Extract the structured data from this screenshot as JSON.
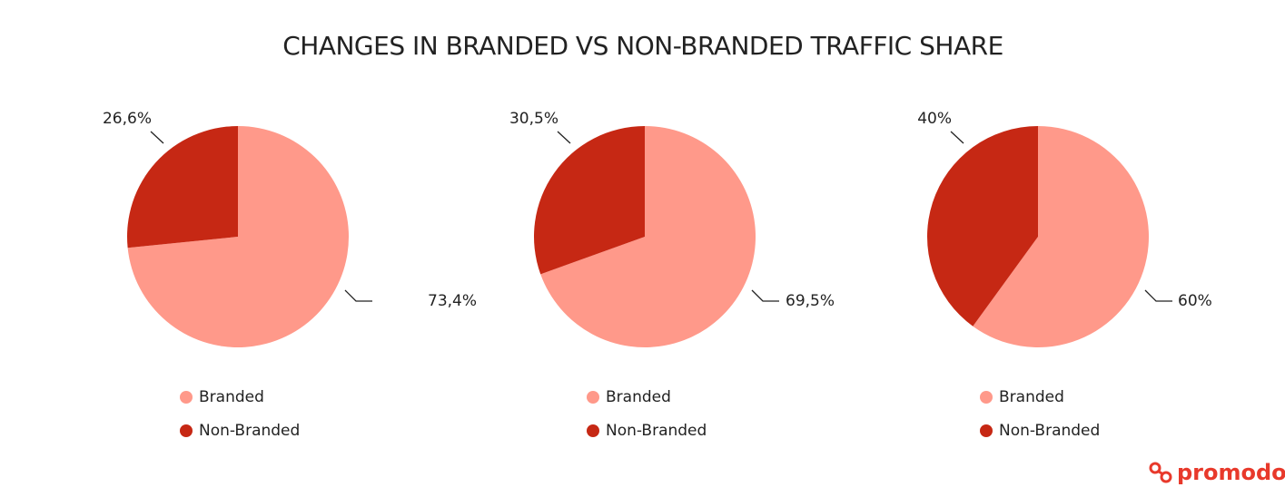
{
  "title": "CHANGES IN BRANDED VS NON-BRANDED TRAFFIC SHARE",
  "logo": "promodo",
  "chart_data": [
    {
      "type": "pie",
      "categories": [
        "Branded",
        "Non-Branded"
      ],
      "values": [
        73.4,
        26.6
      ],
      "value_labels": [
        "73,4%",
        "26,6%"
      ],
      "colors": [
        "#ff998a",
        "#c62814"
      ]
    },
    {
      "type": "pie",
      "categories": [
        "Branded",
        "Non-Branded"
      ],
      "values": [
        69.5,
        30.5
      ],
      "value_labels": [
        "69,5%",
        "30,5%"
      ],
      "colors": [
        "#ff998a",
        "#c62814"
      ]
    },
    {
      "type": "pie",
      "categories": [
        "Branded",
        "Non-Branded"
      ],
      "values": [
        60,
        40
      ],
      "value_labels": [
        "60%",
        "40%"
      ],
      "colors": [
        "#ff998a",
        "#c62814"
      ]
    }
  ]
}
